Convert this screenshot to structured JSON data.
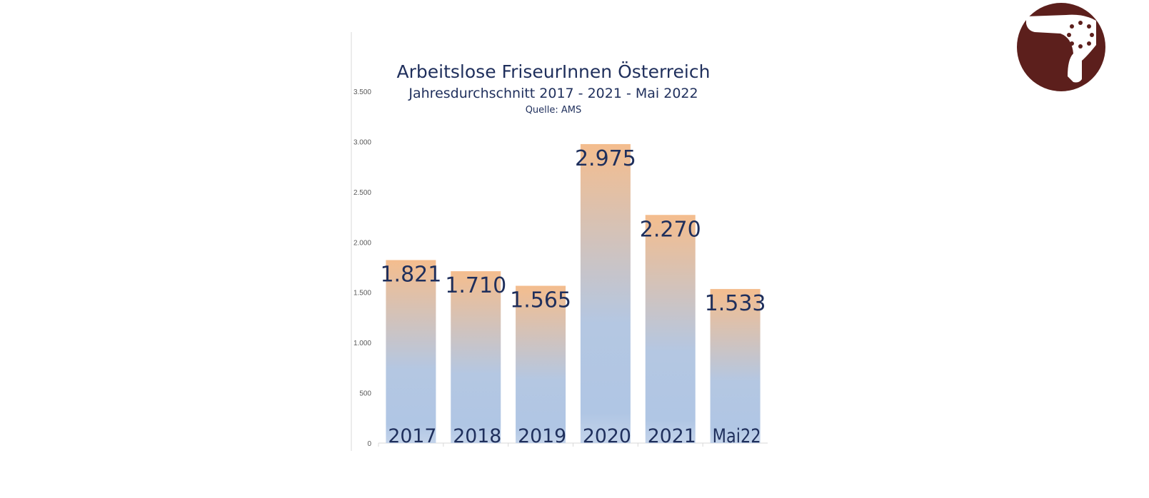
{
  "chart_data": {
    "type": "bar",
    "title": "Arbeitslose FriseurInnen Österreich",
    "subtitle": "Jahresdurchschnitt 2017 - 2021 - Mai 2022",
    "source": "Quelle: AMS",
    "categories": [
      "2017",
      "2018",
      "2019",
      "2020",
      "2021",
      "Mai22"
    ],
    "values": [
      1821,
      1710,
      1565,
      2975,
      2270,
      1533
    ],
    "value_labels": [
      "1.821",
      "1.710",
      "1.565",
      "2.975",
      "2.270",
      "1.533"
    ],
    "yticks": [
      0,
      500,
      1000,
      1500,
      2000,
      2500,
      3000,
      3500
    ],
    "ytick_labels": [
      "0",
      "500",
      "1.000",
      "1.500",
      "2.000",
      "2.500",
      "3.000",
      "3.500"
    ],
    "ylim": [
      0,
      3500
    ],
    "xlabel": "",
    "ylabel": "",
    "grid": false,
    "colors": {
      "bar_top": "#f4bd8e",
      "bar_bottom": "#b0c6e4",
      "text": "#1f2f5c",
      "logo": "#5c1f1c"
    }
  }
}
